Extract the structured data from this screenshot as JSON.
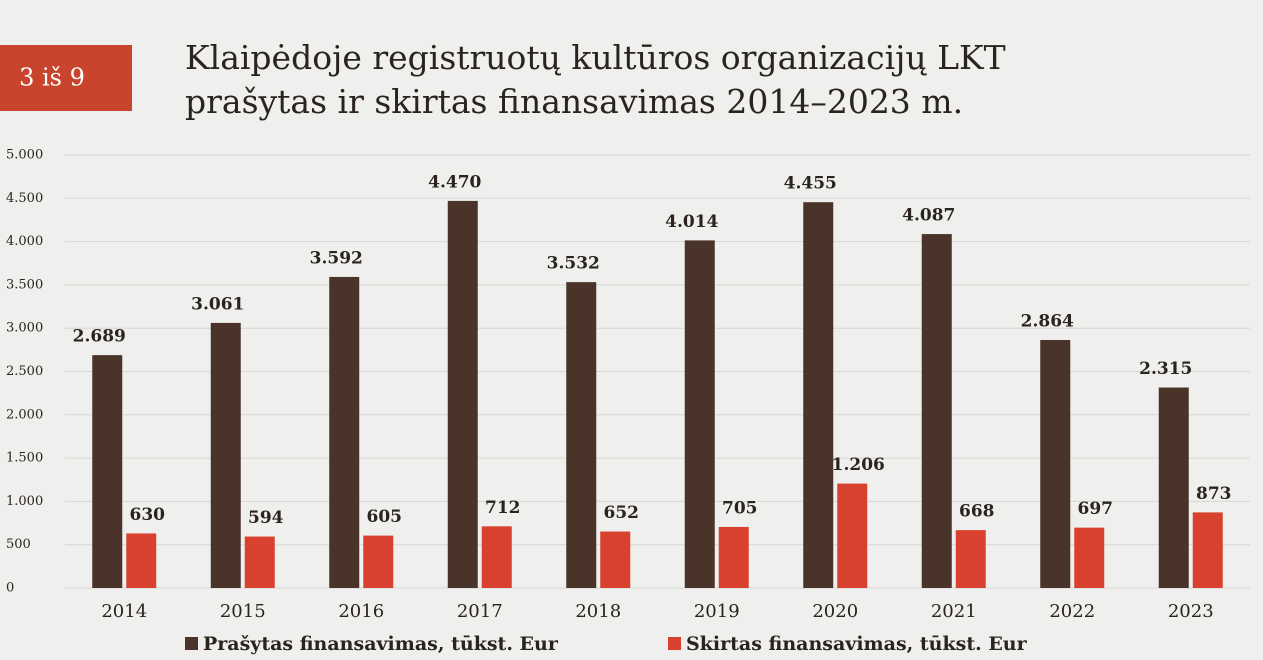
{
  "badge": "3 iš 9",
  "chart_data": {
    "type": "bar",
    "title": [
      "Klaipėdoje registruotų kultūros organizacijų LKT",
      "prašytas ir skirtas finansavimas 2014–2023 m."
    ],
    "categories": [
      "2014",
      "2015",
      "2016",
      "2017",
      "2018",
      "2019",
      "2020",
      "2021",
      "2022",
      "2023"
    ],
    "series": [
      {
        "name": "Prašytas finansavimas, tūkst. Eur",
        "color": "#4a3328",
        "values": [
          2689,
          3061,
          3592,
          4470,
          3532,
          4014,
          4455,
          4087,
          2864,
          2315
        ],
        "value_labels": [
          "2.689",
          "3.061",
          "3.592",
          "4.470",
          "3.532",
          "4.014",
          "4.455",
          "4.087",
          "2.864",
          "2.315"
        ]
      },
      {
        "name": "Skirtas finansavimas, tūkst. Eur",
        "color": "#d8412e",
        "values": [
          630,
          594,
          605,
          712,
          652,
          705,
          1206,
          668,
          697,
          873
        ],
        "value_labels": [
          "630",
          "594",
          "605",
          "712",
          "652",
          "705",
          "1.206",
          "668",
          "697",
          "873"
        ]
      }
    ],
    "ylim": [
      0,
      5000
    ],
    "yticks": [
      0,
      500,
      {
        "value": 1000,
        "label": "1.000"
      },
      {
        "value": 1500,
        "label": "1.500"
      },
      {
        "value": 2000,
        "label": "2.000"
      },
      {
        "value": 2500,
        "label": "2.500"
      },
      {
        "value": 3000,
        "label": "3.000"
      },
      {
        "value": 3500,
        "label": "3.500"
      },
      {
        "value": 4000,
        "label": "4.000"
      },
      {
        "value": 4500,
        "label": "4.500"
      },
      {
        "value": 5000,
        "label": "5.000"
      }
    ],
    "grid": true,
    "legend": "bottom"
  }
}
